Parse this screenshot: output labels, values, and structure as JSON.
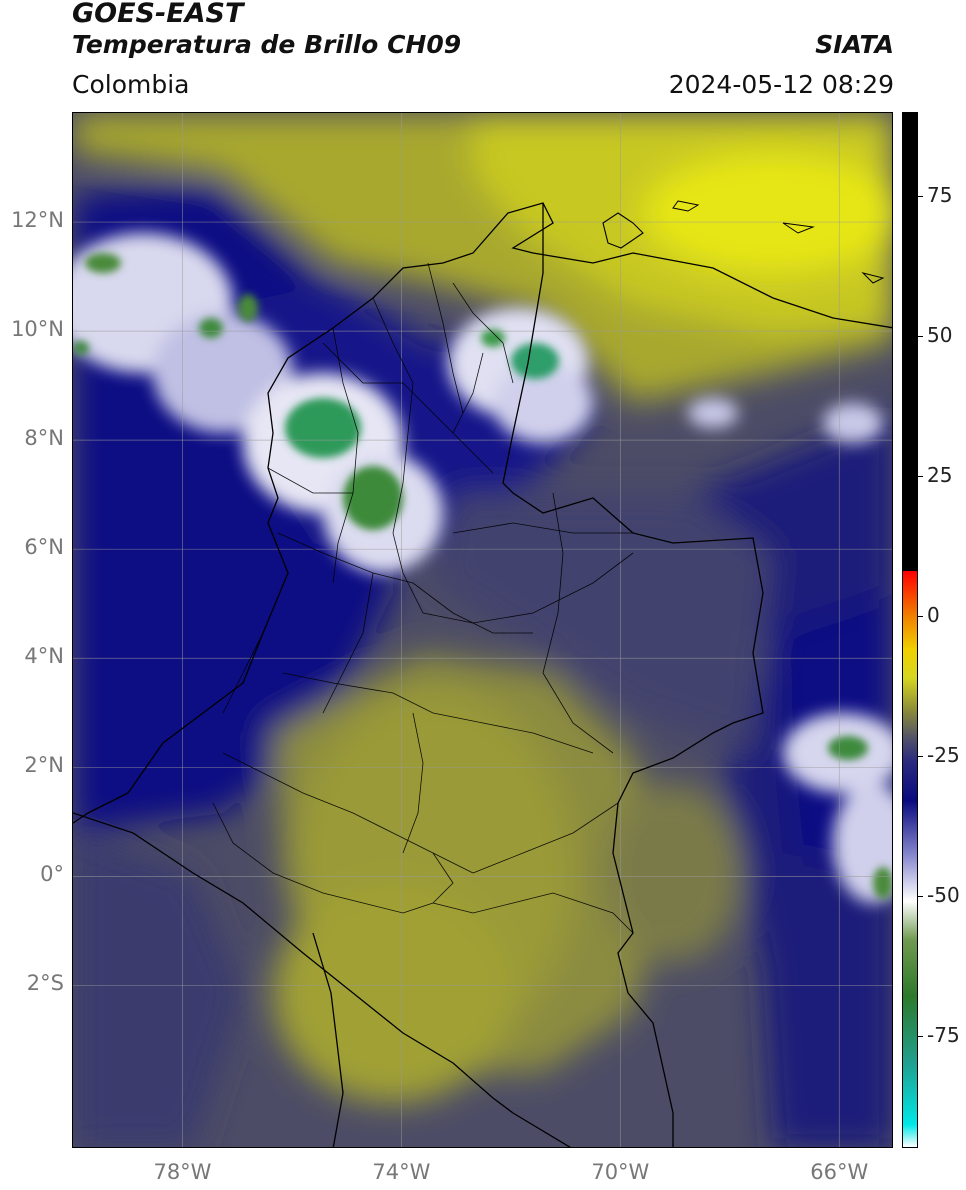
{
  "header": {
    "satellite": "GOES-EAST",
    "product": "Temperatura de Brillo CH09",
    "organization": "SIATA",
    "region": "Colombia",
    "datetime": "2024-05-12 08:29"
  },
  "map": {
    "lon_range": [
      -80,
      -65
    ],
    "lat_range": [
      -5,
      14
    ],
    "lat_ticks": [
      {
        "value": 12,
        "label": "12°N"
      },
      {
        "value": 10,
        "label": "10°N"
      },
      {
        "value": 8,
        "label": "8°N"
      },
      {
        "value": 6,
        "label": "6°N"
      },
      {
        "value": 4,
        "label": "4°N"
      },
      {
        "value": 2,
        "label": "2°N"
      },
      {
        "value": 0,
        "label": "0°"
      },
      {
        "value": -2,
        "label": "2°S"
      }
    ],
    "lon_ticks": [
      {
        "value": -78,
        "label": "78°W"
      },
      {
        "value": -74,
        "label": "74°W"
      },
      {
        "value": -70,
        "label": "70°W"
      },
      {
        "value": -66,
        "label": "66°W"
      }
    ],
    "gridlines": true
  },
  "colorbar": {
    "range": [
      -95,
      90
    ],
    "ticks": [
      {
        "value": 75,
        "label": "75"
      },
      {
        "value": 50,
        "label": "50"
      },
      {
        "value": 25,
        "label": "25"
      },
      {
        "value": 0,
        "label": "0"
      },
      {
        "value": -25,
        "label": "-25"
      },
      {
        "value": -50,
        "label": "-50"
      },
      {
        "value": -75,
        "label": "-75"
      }
    ],
    "stops": [
      {
        "value": -95,
        "color": "#ffffff"
      },
      {
        "value": -91,
        "color": "#00e8e8"
      },
      {
        "value": -80,
        "color": "#20a090"
      },
      {
        "value": -68,
        "color": "#2d7a2a"
      },
      {
        "value": -58,
        "color": "#6e9a50"
      },
      {
        "value": -51,
        "color": "#ffffff"
      },
      {
        "value": -43,
        "color": "#8a8ad0"
      },
      {
        "value": -33,
        "color": "#0a0a80"
      },
      {
        "value": -26,
        "color": "#2a2a80"
      },
      {
        "value": -22,
        "color": "#50506a"
      },
      {
        "value": -17,
        "color": "#8a8a3a"
      },
      {
        "value": -11,
        "color": "#d6d620"
      },
      {
        "value": -6,
        "color": "#f0d000"
      },
      {
        "value": 0,
        "color": "#f08000"
      },
      {
        "value": 8,
        "color": "#ff0000"
      },
      {
        "value": 8.1,
        "color": "#000000"
      },
      {
        "value": 90,
        "color": "#000000"
      }
    ]
  }
}
